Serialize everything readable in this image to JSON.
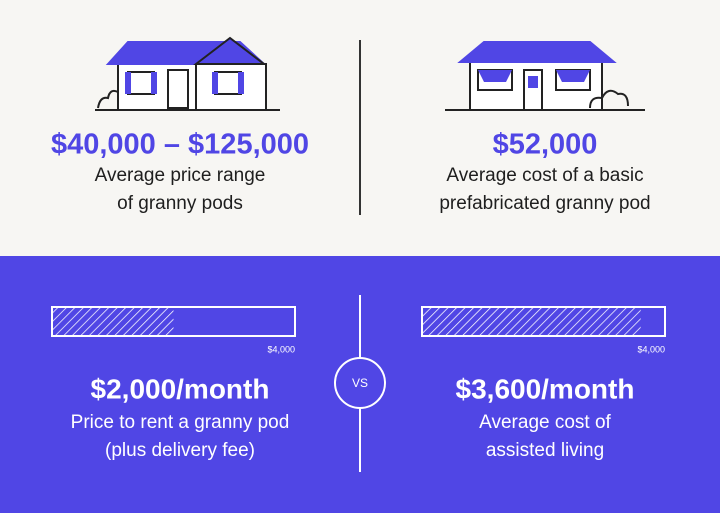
{
  "top": {
    "items": [
      {
        "value": "$40,000 – $125,000",
        "caption_lines": [
          "Average price range",
          "of granny pods"
        ]
      },
      {
        "value": "$52,000",
        "caption_lines": [
          "Average cost of a basic",
          "prefabricated granny pod"
        ]
      }
    ]
  },
  "bottom": {
    "vs": "VS",
    "items": [
      {
        "bar_value": 2000,
        "bar_max": {
          "value": 4000,
          "label": "$4,000"
        },
        "value": "$2,000/month",
        "caption_lines": [
          "Price to rent a granny pod",
          "(plus delivery fee)"
        ]
      },
      {
        "bar_value": 3600,
        "bar_max": {
          "value": 4000,
          "label": "$4,000"
        },
        "value": "$3,600/month",
        "caption_lines": [
          "Average cost of",
          "assisted living"
        ]
      }
    ]
  }
}
